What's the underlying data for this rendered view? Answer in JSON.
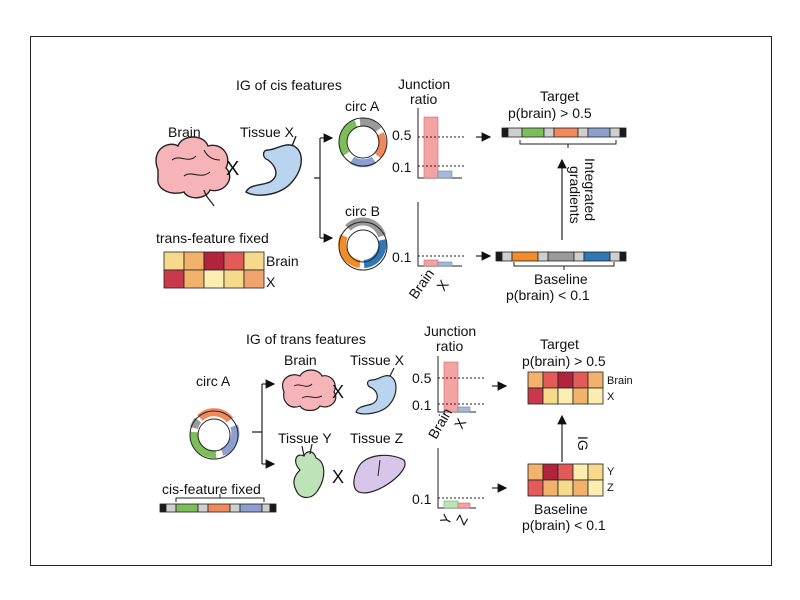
{
  "top": {
    "heading": "IG of cis features",
    "brain_label": "Brain",
    "tissue_label": "Tissue X",
    "times": "X",
    "trans_fixed": "trans-feature fixed",
    "heat_row1": "Brain",
    "heat_row2": "X",
    "circ_a": "circ A",
    "circ_b": "circ B",
    "junction_line1": "Junction",
    "junction_line2": "ratio",
    "tick_05": "0.5",
    "tick_01": "0.1",
    "tick_01_b": "0.1",
    "xlabel_brain": "Brain",
    "xlabel_x": "X",
    "target_label": "Target",
    "target_prob": "p(brain) > 0.5",
    "baseline_label": "Baseline",
    "baseline_prob": "p(brain) < 0.1",
    "ig_line1": "Integrated",
    "ig_line2": "gradients"
  },
  "bottom": {
    "heading": "IG of trans features",
    "circ_a": "circ A",
    "brain_label": "Brain",
    "tissue_x_label": "Tissue X",
    "tissue_y_label": "Tissue Y",
    "tissue_z_label": "Tissue Z",
    "times": "X",
    "cis_fixed": "cis-feature fixed",
    "junction_line1": "Junction",
    "junction_line2": "ratio",
    "tick_05": "0.5",
    "tick_01": "0.1",
    "tick_01_b": "0.1",
    "xlabel_brain": "Brain",
    "xlabel_x": "X",
    "xlabel_y": "Y",
    "xlabel_z": "Z",
    "target_label": "Target",
    "target_prob": "p(brain) > 0.5",
    "target_row1": "Brain",
    "target_row2": "X",
    "baseline_label": "Baseline",
    "baseline_prob": "p(brain) < 0.1",
    "baseline_row1": "Y",
    "baseline_row2": "Z",
    "ig_label": "IG"
  },
  "colors": {
    "green": "#7cbf5a",
    "orange": "#f08a5d",
    "blue_gray": "#8c9fcf",
    "gray": "#9a9a9a",
    "orange2": "#f28c28",
    "blue": "#2f78b8",
    "bar_pink": "#f4a3a3",
    "bar_blue": "#a9b7dd",
    "organ_pink": "#f6b3b8",
    "organ_blue": "#b9d4ef",
    "organ_green": "#bfe3b8",
    "organ_purple": "#d7c6ea"
  }
}
